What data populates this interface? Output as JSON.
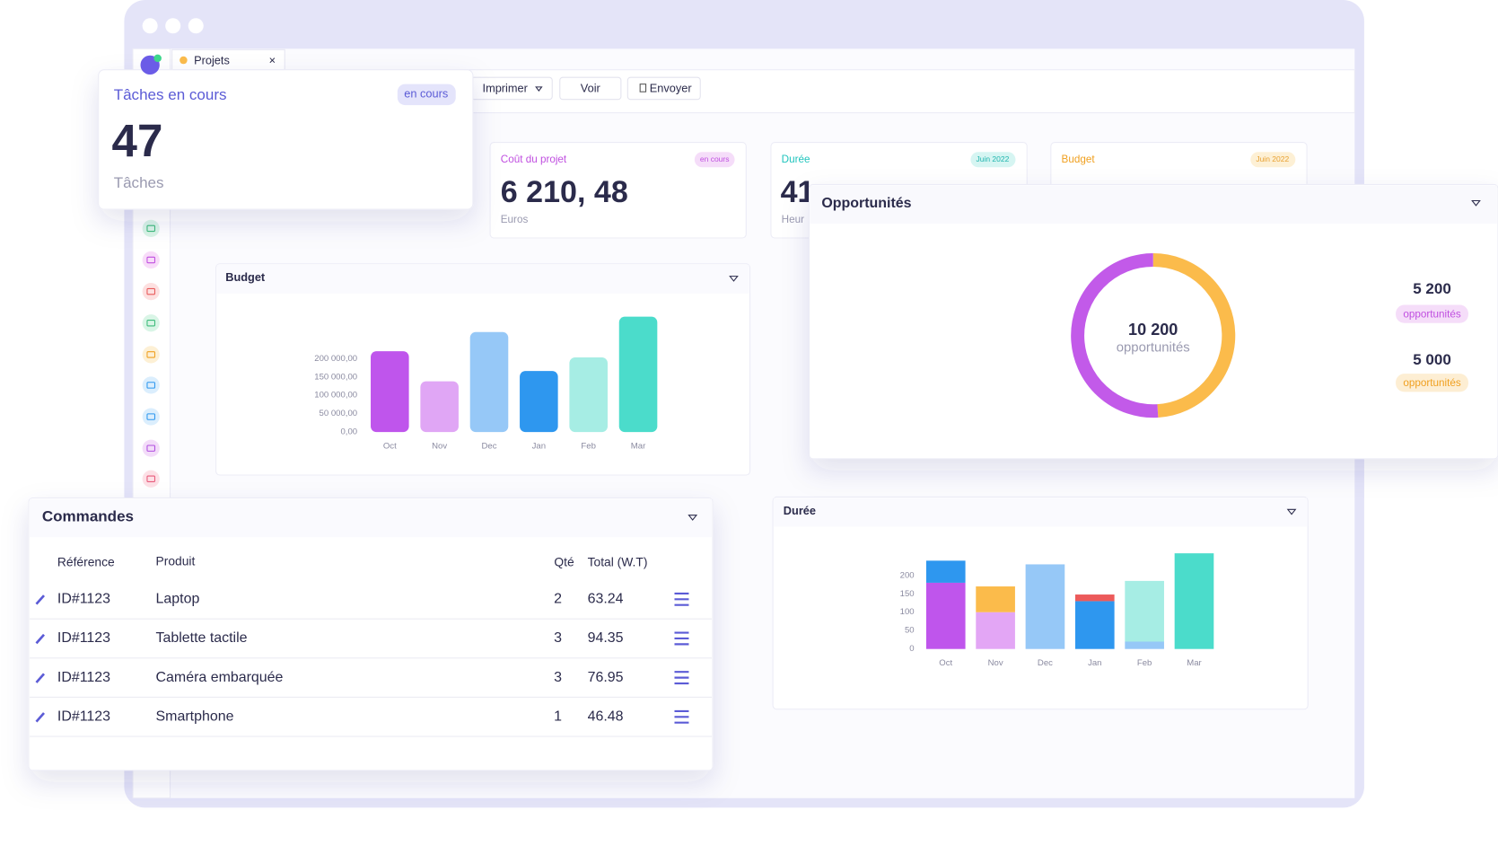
{
  "window": {
    "tab": "Projets"
  },
  "toolbar": {
    "buttons": [
      "Imprimer",
      "Voir",
      "Envoyer"
    ]
  },
  "task_card": {
    "title": "Tâches en cours",
    "badge": "en cours",
    "value": 47,
    "caption": "Tâches"
  },
  "kpi_cards": [
    {
      "title": "Coût du projet",
      "badge": "en cours",
      "value": "6 210, 48",
      "caption": "Euros"
    },
    {
      "title": "Durée",
      "badge": "Juin 2022",
      "value": "41",
      "caption": "Heur"
    },
    {
      "title": "Budget",
      "badge": "Juin 2022"
    }
  ],
  "budget_chart": {
    "type": "bar",
    "title": "Budget",
    "categories": [
      "Oct",
      "Nov",
      "Dec",
      "Jan",
      "Feb",
      "Mar"
    ],
    "values": [
      220000,
      138000,
      272000,
      166000,
      203000,
      314000
    ],
    "colors": [
      "#bf55ec",
      "#e0a6f5",
      "#96c8f7",
      "#2e97ef",
      "#a6ede4",
      "#4bdccb"
    ],
    "ylim": [
      0,
      320000
    ],
    "yticks": [
      {
        "value": 0,
        "label": "0,00"
      },
      {
        "value": 50000,
        "label": "50 000,00"
      },
      {
        "value": 100000,
        "label": "100 000,00"
      },
      {
        "value": 150000,
        "label": "150 000,00"
      },
      {
        "value": 200000,
        "label": "200 000,00"
      }
    ]
  },
  "opportunities": {
    "type": "pie",
    "title": "Opportunités",
    "total": {
      "value": 10200,
      "label": "10 200"
    },
    "total_caption": "opportunités",
    "values": [
      5200,
      5000
    ],
    "value_labels": [
      "5 200",
      "5 000"
    ],
    "captions": [
      "opportunités",
      "opportunités"
    ],
    "colors": [
      "#c25ae9",
      "#fbbb4b"
    ]
  },
  "duration_chart": {
    "type": "stacked_bar",
    "title": "Durée",
    "categories": [
      "Oct",
      "Nov",
      "Dec",
      "Jan",
      "Feb",
      "Mar"
    ],
    "series": [
      {
        "values": [
          180,
          100,
          230,
          130,
          20,
          260
        ],
        "colors": [
          "#bf55ec",
          "#e3a6f5",
          "#96c8f7",
          "#2e97ef",
          "#96c8f7",
          "#4bdccb"
        ]
      },
      {
        "values": [
          60,
          70,
          null,
          18,
          165,
          null
        ],
        "colors": [
          "#2e97ef",
          "#fbbb4b",
          null,
          "#ec5a5a",
          "#a6ede4",
          null
        ]
      }
    ],
    "ylim": [
      0,
      270
    ],
    "yticks": [
      0,
      50,
      100,
      150,
      200
    ]
  },
  "orders": {
    "title": "Commandes",
    "columns": [
      "Référence",
      "Produit",
      "Qté",
      "Total (W.T)"
    ],
    "rows": [
      [
        "ID#1123",
        "Laptop",
        2,
        63.24
      ],
      [
        "ID#1123",
        "Tablette tactile",
        3,
        94.35
      ],
      [
        "ID#1123",
        "Caméra embarquée",
        3,
        76.95
      ],
      [
        "ID#1123",
        "Smartphone",
        1,
        46.48
      ]
    ]
  }
}
